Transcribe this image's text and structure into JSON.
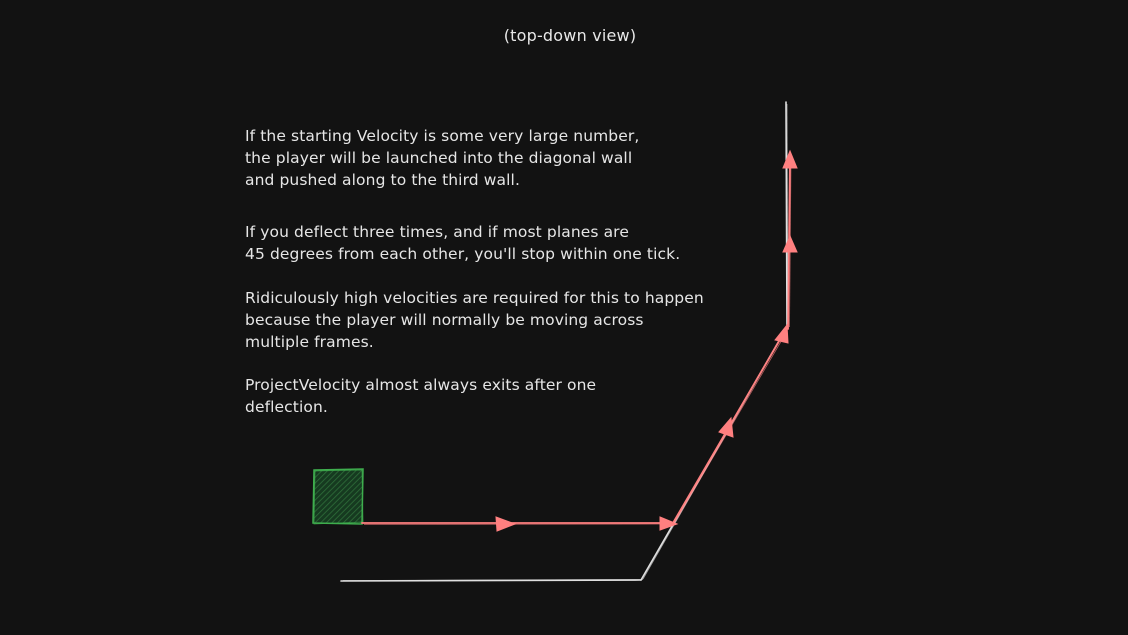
{
  "caption": "(top-down view)",
  "paragraphs": [
    {
      "lines": [
        "If the starting Velocity is some very large number,",
        "the player will be launched into the diagonal wall",
        "and pushed along to the third wall."
      ]
    },
    {
      "lines": [
        "If you deflect three times, and if most planes are",
        "45 degrees from each other, you'll stop within one tick."
      ]
    },
    {
      "lines": [
        "Ridiculously high velocities are required for this to happen",
        "because the player will normally be moving across",
        "multiple frames."
      ]
    },
    {
      "lines": [
        "ProjectVelocity almost always exits after one",
        "deflection."
      ]
    }
  ],
  "colors": {
    "background": "#121212",
    "text": "#e6e6e6",
    "wall": "#e0e0e0",
    "path": "#ff8080",
    "player_fill": "#1f4d2a",
    "player_stroke": "#3fae4e"
  }
}
